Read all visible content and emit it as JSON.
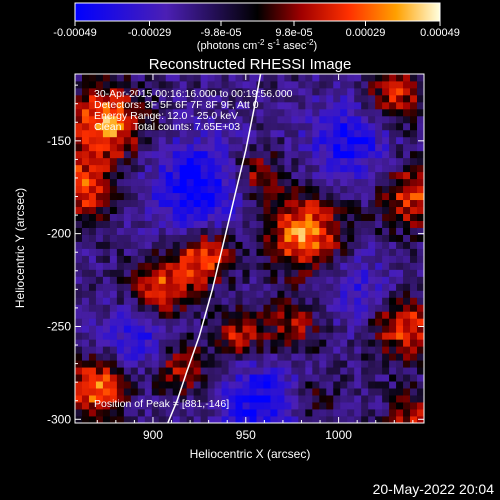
{
  "colorbar": {
    "ticks": [
      "-0.00049",
      "-0.00029",
      "-9.8e-05",
      "9.8e-05",
      "0.00029",
      "0.00049"
    ],
    "units_main": "(photons cm",
    "units_sup1": "-2",
    "units_mid1": " s",
    "units_sup2": "-1",
    "units_mid2": " asec",
    "units_sup3": "-2",
    "units_end": ")"
  },
  "chart_data": {
    "type": "heatmap",
    "title": "Reconstructed RHESSI Image",
    "xlabel": "Heliocentric X (arcsec)",
    "ylabel": "Heliocentric Y (arcsec)",
    "xlim": [
      858,
      1046
    ],
    "ylim": [
      -302,
      -114
    ],
    "xticks": [
      900,
      950,
      1000
    ],
    "yticks": [
      -150,
      -200,
      -250,
      -300
    ],
    "zlim": [
      -0.00049,
      0.00049
    ],
    "limb_line": [
      [
        908,
        -302
      ],
      [
        913,
        -290
      ],
      [
        918,
        -275
      ],
      [
        925,
        -255
      ],
      [
        932,
        -230
      ],
      [
        938,
        -205
      ],
      [
        944,
        -180
      ],
      [
        950,
        -155
      ],
      [
        955,
        -130
      ],
      [
        958,
        -114
      ]
    ],
    "peak": [
      881,
      -146
    ],
    "info_lines": [
      "30-Apr-2015 00:16:16.000 to 00:19:56.000",
      "Detectors: 3F 5F 6F 7F 8F 9F, Att 0",
      "Energy Range: 12.0 - 25.0 keV",
      "Clean    Total counts: 7.65E+03"
    ],
    "peak_label": "Position of Peak = [881,-146]",
    "sources": [
      {
        "x": 875,
        "y": -140,
        "amp": 1.0,
        "r": 14
      },
      {
        "x": 862,
        "y": -175,
        "amp": 0.8,
        "r": 12
      },
      {
        "x": 905,
        "y": -230,
        "amp": 0.85,
        "r": 12
      },
      {
        "x": 928,
        "y": -212,
        "amp": 0.9,
        "r": 10
      },
      {
        "x": 982,
        "y": -200,
        "amp": 1.0,
        "r": 15
      },
      {
        "x": 1030,
        "y": -125,
        "amp": 0.7,
        "r": 11
      },
      {
        "x": 1040,
        "y": -180,
        "amp": 0.75,
        "r": 12
      },
      {
        "x": 1035,
        "y": -250,
        "amp": 0.8,
        "r": 12
      },
      {
        "x": 975,
        "y": -250,
        "amp": 0.55,
        "r": 11
      },
      {
        "x": 915,
        "y": -272,
        "amp": 0.7,
        "r": 10
      },
      {
        "x": 946,
        "y": -255,
        "amp": 0.65,
        "r": 9
      },
      {
        "x": 870,
        "y": -283,
        "amp": 0.95,
        "r": 11
      },
      {
        "x": 955,
        "y": -168,
        "amp": 0.6,
        "r": 10
      },
      {
        "x": 1040,
        "y": -300,
        "amp": 0.6,
        "r": 10
      },
      {
        "x": 985,
        "y": -290,
        "amp": 0.4,
        "r": 10
      },
      {
        "x": 925,
        "y": -175,
        "amp": -0.7,
        "r": 18
      },
      {
        "x": 1005,
        "y": -150,
        "amp": -0.6,
        "r": 15
      },
      {
        "x": 895,
        "y": -255,
        "amp": -0.5,
        "r": 14
      },
      {
        "x": 960,
        "y": -290,
        "amp": -0.65,
        "r": 16
      },
      {
        "x": 1010,
        "y": -230,
        "amp": -0.4,
        "r": 14
      }
    ]
  },
  "footer": {
    "date": "20-May-2022 20:04"
  }
}
